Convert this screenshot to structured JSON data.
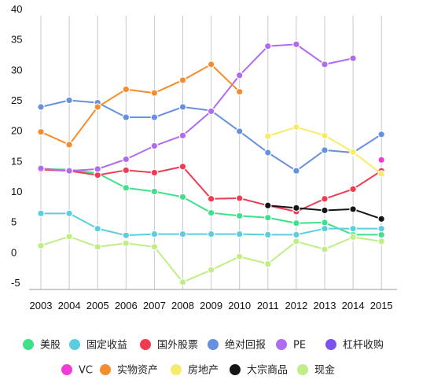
{
  "chart_data": {
    "type": "line",
    "x": [
      "2003",
      "2004",
      "2005",
      "2006",
      "2007",
      "2008",
      "2009",
      "2010",
      "2011",
      "2012",
      "2013",
      "2014",
      "2015"
    ],
    "ylim": [
      -5,
      40
    ],
    "yticks": [
      "40",
      "35",
      "30",
      "25",
      "20",
      "15",
      "10",
      "5",
      "0",
      "-5"
    ],
    "grid": "vertical",
    "legend_position": "bottom",
    "series": [
      {
        "name": "美股",
        "color": "#3ee08a",
        "values": [
          14.8,
          14.7,
          14.1,
          11.7,
          11.1,
          10.2,
          7.6,
          7.1,
          6.8,
          5.9,
          6.0,
          4.0,
          4.0
        ]
      },
      {
        "name": "固定收益",
        "color": "#5ccde0",
        "values": [
          7.5,
          7.5,
          5.0,
          3.9,
          4.1,
          4.1,
          4.1,
          4.1,
          4.0,
          4.0,
          5.0,
          5.0,
          5.0
        ]
      },
      {
        "name": "国外股票",
        "color": "#f03c52",
        "values": [
          14.7,
          14.5,
          13.8,
          14.6,
          14.2,
          15.2,
          9.9,
          10.0,
          8.8,
          7.8,
          9.9,
          11.5,
          14.5
        ]
      },
      {
        "name": "绝对回报",
        "color": "#6690e0",
        "values": [
          25.0,
          26.1,
          25.7,
          23.3,
          23.3,
          25.0,
          24.4,
          21.0,
          17.5,
          14.5,
          17.9,
          17.5,
          20.5
        ]
      },
      {
        "name": "PE",
        "color": "#b06cf0",
        "values": [
          14.9,
          14.5,
          14.8,
          16.4,
          18.6,
          20.3,
          24.3,
          30.2,
          35.0,
          35.3,
          32.0,
          33.0,
          null
        ]
      },
      {
        "name": "杠杆收购",
        "color": "#7a52f0",
        "values": [
          null,
          null,
          null,
          null,
          null,
          null,
          null,
          null,
          null,
          null,
          null,
          null,
          null
        ]
      },
      {
        "name": "VC",
        "color": "#f23ad8",
        "values": [
          null,
          null,
          null,
          null,
          null,
          null,
          null,
          null,
          null,
          null,
          null,
          null,
          16.3
        ]
      },
      {
        "name": "实物资产",
        "color": "#f58d2c",
        "values": [
          20.9,
          18.8,
          25.0,
          27.9,
          27.3,
          29.4,
          32.0,
          27.5,
          null,
          null,
          null,
          null,
          null
        ]
      },
      {
        "name": "房地产",
        "color": "#f8eb6a",
        "values": [
          null,
          null,
          null,
          null,
          null,
          null,
          null,
          null,
          20.2,
          21.7,
          20.3,
          17.6,
          14.0
        ]
      },
      {
        "name": "大宗商品",
        "color": "#151515",
        "values": [
          null,
          null,
          null,
          null,
          null,
          null,
          null,
          null,
          8.8,
          8.4,
          8.0,
          8.2,
          6.6
        ]
      },
      {
        "name": "现金",
        "color": "#bfee86",
        "values": [
          2.2,
          3.7,
          2.0,
          2.6,
          2.0,
          -3.8,
          -1.8,
          0.4,
          -0.8,
          2.9,
          1.6,
          3.6,
          2.9
        ]
      }
    ]
  }
}
